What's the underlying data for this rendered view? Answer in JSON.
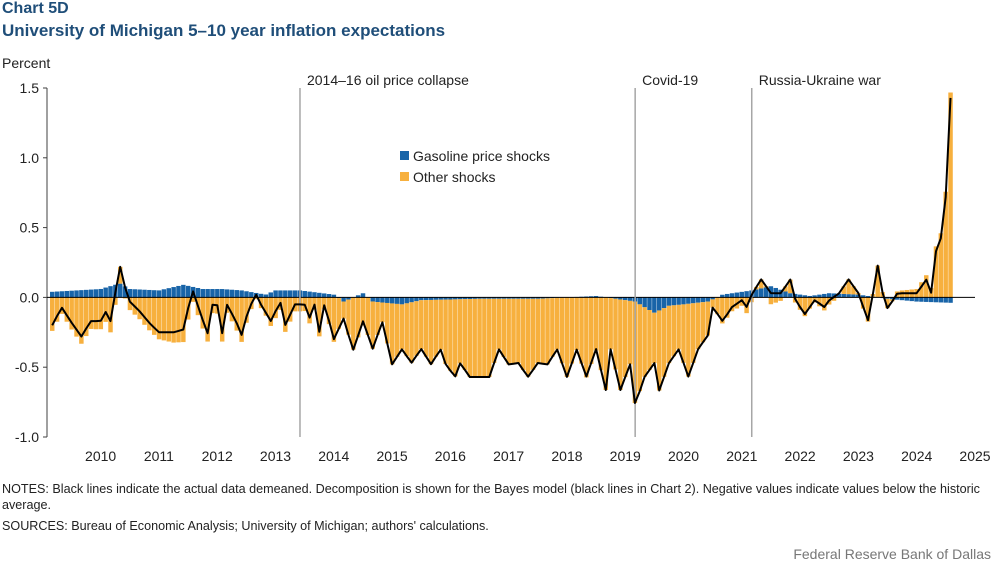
{
  "chart_label": "Chart 5D",
  "chart_data": {
    "type": "bar",
    "stacked": true,
    "title": "University of Michigan 5–10 year inflation expectations",
    "ylabel": "Percent",
    "ylim": [
      -1.0,
      1.5
    ],
    "yticks": [
      1.5,
      1.0,
      0.5,
      0.0,
      -0.5,
      -1.0
    ],
    "ytick_labels": [
      "1.5",
      "1.0",
      "0.5",
      "0.0",
      "-0.5",
      "-1.0"
    ],
    "xlim": [
      2009.58,
      2025.5
    ],
    "xticks": [
      2010,
      2011,
      2012,
      2013,
      2014,
      2015,
      2016,
      2017,
      2018,
      2019,
      2020,
      2021,
      2022,
      2023,
      2024,
      2025
    ],
    "xtick_labels": [
      "2010",
      "2011",
      "2012",
      "2013",
      "2014",
      "2015",
      "2016",
      "2017",
      "2018",
      "2019",
      "2020",
      "2021",
      "2022",
      "2023",
      "2024",
      "2025"
    ],
    "legend": [
      "Gasoline price shocks",
      "Other shocks"
    ],
    "legend_position": "upper-center",
    "colors": {
      "gasoline": "#1864a8",
      "other": "#f7b03e",
      "actual": "#000000",
      "event_line": "#a6a6a6"
    },
    "events": [
      {
        "x": 2013.92,
        "label": "2014–16 oil price collapse"
      },
      {
        "x": 2019.67,
        "label": "Covid-19"
      },
      {
        "x": 2021.67,
        "label": "Russia-Ukraine  war"
      }
    ],
    "anchors": {
      "actual": [
        [
          2009.67,
          -0.2
        ],
        [
          2009.83,
          -0.07
        ],
        [
          2010.0,
          -0.18
        ],
        [
          2010.17,
          -0.28
        ],
        [
          2010.33,
          -0.17
        ],
        [
          2010.5,
          -0.17
        ],
        [
          2010.58,
          -0.1
        ],
        [
          2010.67,
          -0.17
        ],
        [
          2010.83,
          0.23
        ],
        [
          2010.92,
          0.07
        ],
        [
          2011.0,
          -0.03
        ],
        [
          2011.17,
          -0.1
        ],
        [
          2011.33,
          -0.18
        ],
        [
          2011.5,
          -0.25
        ],
        [
          2011.75,
          -0.25
        ],
        [
          2011.92,
          -0.23
        ],
        [
          2012.0,
          -0.08
        ],
        [
          2012.08,
          0.05
        ],
        [
          2012.25,
          -0.16
        ],
        [
          2012.33,
          -0.27
        ],
        [
          2012.42,
          -0.05
        ],
        [
          2012.5,
          -0.05
        ],
        [
          2012.58,
          -0.27
        ],
        [
          2012.67,
          -0.05
        ],
        [
          2012.83,
          -0.18
        ],
        [
          2012.92,
          -0.27
        ],
        [
          2013.0,
          -0.14
        ],
        [
          2013.08,
          -0.05
        ],
        [
          2013.17,
          0.02
        ],
        [
          2013.25,
          -0.05
        ],
        [
          2013.42,
          -0.17
        ],
        [
          2013.58,
          -0.03
        ],
        [
          2013.67,
          -0.2
        ],
        [
          2013.83,
          -0.05
        ],
        [
          2014.0,
          -0.05
        ],
        [
          2014.08,
          -0.15
        ],
        [
          2014.17,
          -0.05
        ],
        [
          2014.25,
          -0.25
        ],
        [
          2014.33,
          -0.05
        ],
        [
          2014.42,
          -0.17
        ],
        [
          2014.5,
          -0.3
        ],
        [
          2014.67,
          -0.15
        ],
        [
          2014.83,
          -0.38
        ],
        [
          2015.0,
          -0.17
        ],
        [
          2015.17,
          -0.37
        ],
        [
          2015.33,
          -0.17
        ],
        [
          2015.5,
          -0.48
        ],
        [
          2015.67,
          -0.37
        ],
        [
          2015.83,
          -0.47
        ],
        [
          2016.0,
          -0.37
        ],
        [
          2016.17,
          -0.48
        ],
        [
          2016.33,
          -0.37
        ],
        [
          2016.42,
          -0.48
        ],
        [
          2016.58,
          -0.57
        ],
        [
          2016.67,
          -0.47
        ],
        [
          2016.83,
          -0.57
        ],
        [
          2017.17,
          -0.57
        ],
        [
          2017.33,
          -0.37
        ],
        [
          2017.5,
          -0.48
        ],
        [
          2017.67,
          -0.47
        ],
        [
          2017.83,
          -0.57
        ],
        [
          2018.0,
          -0.47
        ],
        [
          2018.17,
          -0.48
        ],
        [
          2018.33,
          -0.37
        ],
        [
          2018.5,
          -0.57
        ],
        [
          2018.67,
          -0.37
        ],
        [
          2018.83,
          -0.57
        ],
        [
          2019.0,
          -0.37
        ],
        [
          2019.17,
          -0.67
        ],
        [
          2019.25,
          -0.37
        ],
        [
          2019.42,
          -0.67
        ],
        [
          2019.58,
          -0.47
        ],
        [
          2019.67,
          -0.77
        ],
        [
          2019.83,
          -0.57
        ],
        [
          2020.0,
          -0.47
        ],
        [
          2020.08,
          -0.67
        ],
        [
          2020.25,
          -0.47
        ],
        [
          2020.42,
          -0.37
        ],
        [
          2020.58,
          -0.57
        ],
        [
          2020.75,
          -0.37
        ],
        [
          2020.92,
          -0.27
        ],
        [
          2021.0,
          -0.07
        ],
        [
          2021.17,
          -0.17
        ],
        [
          2021.33,
          -0.07
        ],
        [
          2021.5,
          -0.02
        ],
        [
          2021.58,
          -0.07
        ],
        [
          2021.67,
          0.02
        ],
        [
          2021.83,
          0.13
        ],
        [
          2022.0,
          0.03
        ],
        [
          2022.17,
          0.03
        ],
        [
          2022.33,
          0.13
        ],
        [
          2022.42,
          -0.02
        ],
        [
          2022.58,
          -0.12
        ],
        [
          2022.75,
          -0.02
        ],
        [
          2022.92,
          -0.07
        ],
        [
          2023.0,
          -0.02
        ],
        [
          2023.17,
          0.03
        ],
        [
          2023.33,
          0.13
        ],
        [
          2023.5,
          0.03
        ],
        [
          2023.67,
          -0.17
        ],
        [
          2023.83,
          0.23
        ],
        [
          2023.92,
          0.02
        ],
        [
          2024.0,
          -0.08
        ],
        [
          2024.17,
          0.03
        ],
        [
          2024.5,
          0.03
        ],
        [
          2024.67,
          0.13
        ],
        [
          2024.75,
          0.03
        ],
        [
          2024.83,
          0.33
        ],
        [
          2024.92,
          0.43
        ],
        [
          2025.0,
          0.73
        ],
        [
          2025.08,
          1.43
        ],
        [
          2025.17,
          1.25
        ]
      ],
      "gasoline": [
        [
          2009.67,
          0.04
        ],
        [
          2010.5,
          0.06
        ],
        [
          2010.83,
          0.1
        ],
        [
          2011.0,
          0.06
        ],
        [
          2011.5,
          0.05
        ],
        [
          2011.92,
          0.09
        ],
        [
          2012.25,
          0.06
        ],
        [
          2012.58,
          0.06
        ],
        [
          2012.92,
          0.05
        ],
        [
          2013.33,
          0.02
        ],
        [
          2013.5,
          0.05
        ],
        [
          2013.92,
          0.05
        ],
        [
          2014.5,
          0.02
        ],
        [
          2014.67,
          -0.03
        ],
        [
          2015.0,
          0.03
        ],
        [
          2015.17,
          -0.03
        ],
        [
          2015.67,
          -0.05
        ],
        [
          2016.0,
          -0.02
        ],
        [
          2017.0,
          -0.01
        ],
        [
          2018.0,
          -0.01
        ],
        [
          2019.0,
          0.01
        ],
        [
          2019.67,
          -0.03
        ],
        [
          2019.83,
          -0.07
        ],
        [
          2020.0,
          -0.11
        ],
        [
          2020.25,
          -0.06
        ],
        [
          2020.5,
          -0.05
        ],
        [
          2020.92,
          -0.03
        ],
        [
          2021.17,
          0.02
        ],
        [
          2021.67,
          0.05
        ],
        [
          2022.0,
          0.08
        ],
        [
          2022.33,
          0.03
        ],
        [
          2022.67,
          0.01
        ],
        [
          2023.0,
          0.03
        ],
        [
          2023.5,
          0.02
        ],
        [
          2024.0,
          -0.01
        ],
        [
          2024.5,
          -0.03
        ],
        [
          2025.17,
          -0.04
        ]
      ]
    },
    "sampling": {
      "start": 2009.67,
      "step": 0.0833,
      "count": 186
    }
  },
  "notes": "NOTES: Black lines indicate the actual data demeaned. Decomposition is shown for the Bayes model (black lines in Chart 2). Negative values indicate values below the historic average.",
  "sources": "SOURCES: Bureau of Economic Analysis; University of Michigan;  authors' calculations.",
  "credit": "Federal Reserve Bank of Dallas"
}
